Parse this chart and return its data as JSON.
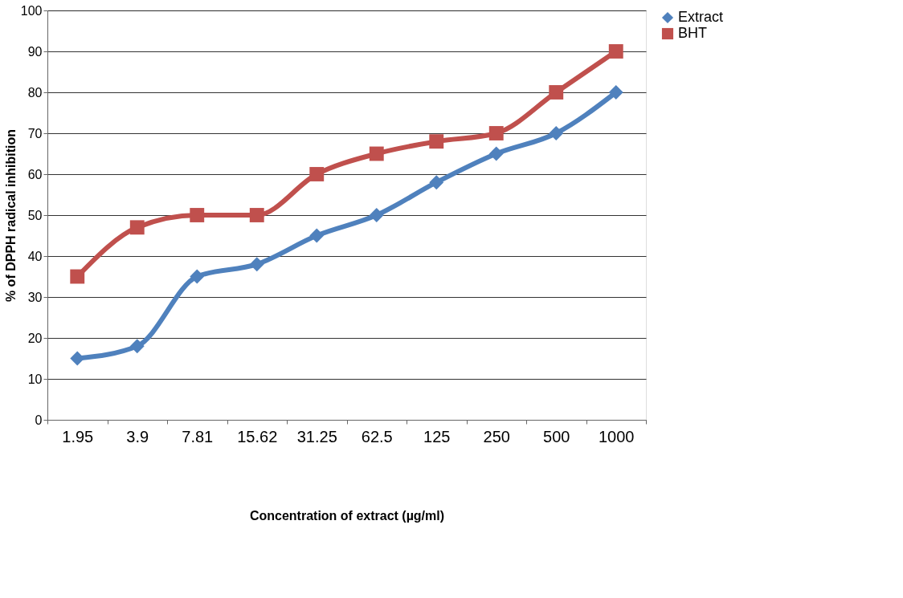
{
  "chart_data": {
    "type": "line",
    "xlabel": "Concentration of extract (µg/ml)",
    "ylabel": "% of DPPH radical inhibition",
    "categories": [
      "1.95",
      "3.9",
      "7.81",
      "15.62",
      "31.25",
      "62.5",
      "125",
      "250",
      "500",
      "1000"
    ],
    "series": [
      {
        "name": "Extract",
        "color": "#4f81bd",
        "marker": "diamond",
        "values": [
          15,
          18,
          35,
          38,
          45,
          50,
          58,
          65,
          70,
          80
        ]
      },
      {
        "name": "BHT",
        "color": "#c0504d",
        "marker": "square",
        "values": [
          35,
          47,
          50,
          50,
          60,
          65,
          68,
          70,
          80,
          90
        ]
      }
    ],
    "ylim": [
      0,
      100
    ],
    "yticks": [
      0,
      10,
      20,
      30,
      40,
      50,
      60,
      70,
      80,
      90,
      100
    ],
    "grid": "y",
    "legend": "right"
  }
}
